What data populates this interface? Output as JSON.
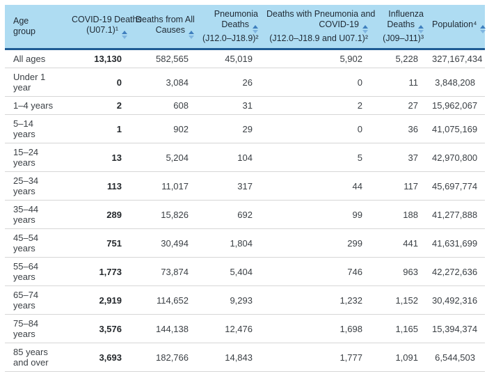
{
  "colors": {
    "header_bg": "#aedcf2",
    "header_border": "#1e5b94",
    "row_border": "#d6d6d6",
    "sort_icon_up": "#3f7fbe",
    "sort_icon_down": "#7fb5e0"
  },
  "table": {
    "columns": [
      {
        "id": "age_group",
        "align": "left",
        "sortable": false,
        "bold_values": false,
        "lines": [
          {
            "text": "Age"
          },
          {
            "text": "group"
          }
        ]
      },
      {
        "id": "covid19_deaths",
        "align": "right",
        "sortable": true,
        "bold_values": true,
        "lines": [
          {
            "text": "COVID-19 Deaths"
          },
          {
            "text": "(U07.1)¹",
            "sort": true
          }
        ]
      },
      {
        "id": "all_causes_deaths",
        "align": "right",
        "sortable": true,
        "bold_values": false,
        "lines": [
          {
            "text": "Deaths from All"
          },
          {
            "text": "Causes",
            "sort": true
          }
        ]
      },
      {
        "id": "pneumonia_deaths",
        "align": "right",
        "sortable": true,
        "bold_values": false,
        "lines": [
          {
            "text": "Pneumonia"
          },
          {
            "text": "Deaths",
            "sort": true
          },
          {
            "text": "(J12.0–J18.9)²"
          }
        ]
      },
      {
        "id": "pneumonia_covid_deaths",
        "align": "right",
        "sortable": true,
        "bold_values": false,
        "lines": [
          {
            "text": "Deaths with Pneumonia and"
          },
          {
            "text": "COVID-19",
            "sort": true
          },
          {
            "text": "(J12.0–J18.9 and U07.1)²"
          }
        ]
      },
      {
        "id": "influenza_deaths",
        "align": "right",
        "sortable": true,
        "bold_values": false,
        "lines": [
          {
            "text": "Influenza"
          },
          {
            "text": "Deaths",
            "sort": true
          },
          {
            "text": "(J09–J11)³"
          }
        ]
      },
      {
        "id": "population",
        "align": "right",
        "sortable": true,
        "bold_values": false,
        "lines": [
          {
            "text": "Population⁴",
            "sort": true
          }
        ]
      }
    ],
    "rows": [
      {
        "age_group": "All ages",
        "covid19_deaths": "13,130",
        "all_causes_deaths": "582,565",
        "pneumonia_deaths": "45,019",
        "pneumonia_covid_deaths": "5,902",
        "influenza_deaths": "5,228",
        "population": "327,167,434"
      },
      {
        "age_group": "Under 1 year",
        "covid19_deaths": "0",
        "all_causes_deaths": "3,084",
        "pneumonia_deaths": "26",
        "pneumonia_covid_deaths": "0",
        "influenza_deaths": "11",
        "population": "3,848,208"
      },
      {
        "age_group": "1–4 years",
        "covid19_deaths": "2",
        "all_causes_deaths": "608",
        "pneumonia_deaths": "31",
        "pneumonia_covid_deaths": "2",
        "influenza_deaths": "27",
        "population": "15,962,067"
      },
      {
        "age_group": "5–14 years",
        "covid19_deaths": "1",
        "all_causes_deaths": "902",
        "pneumonia_deaths": "29",
        "pneumonia_covid_deaths": "0",
        "influenza_deaths": "36",
        "population": "41,075,169"
      },
      {
        "age_group": "15–24 years",
        "covid19_deaths": "13",
        "all_causes_deaths": "5,204",
        "pneumonia_deaths": "104",
        "pneumonia_covid_deaths": "5",
        "influenza_deaths": "37",
        "population": "42,970,800"
      },
      {
        "age_group": "25–34 years",
        "covid19_deaths": "113",
        "all_causes_deaths": "11,017",
        "pneumonia_deaths": "317",
        "pneumonia_covid_deaths": "44",
        "influenza_deaths": "117",
        "population": "45,697,774"
      },
      {
        "age_group": "35–44 years",
        "covid19_deaths": "289",
        "all_causes_deaths": "15,826",
        "pneumonia_deaths": "692",
        "pneumonia_covid_deaths": "99",
        "influenza_deaths": "188",
        "population": "41,277,888"
      },
      {
        "age_group": "45–54 years",
        "covid19_deaths": "751",
        "all_causes_deaths": "30,494",
        "pneumonia_deaths": "1,804",
        "pneumonia_covid_deaths": "299",
        "influenza_deaths": "441",
        "population": "41,631,699"
      },
      {
        "age_group": "55–64 years",
        "covid19_deaths": "1,773",
        "all_causes_deaths": "73,874",
        "pneumonia_deaths": "5,404",
        "pneumonia_covid_deaths": "746",
        "influenza_deaths": "963",
        "population": "42,272,636"
      },
      {
        "age_group": "65–74 years",
        "covid19_deaths": "2,919",
        "all_causes_deaths": "114,652",
        "pneumonia_deaths": "9,293",
        "pneumonia_covid_deaths": "1,232",
        "influenza_deaths": "1,152",
        "population": "30,492,316"
      },
      {
        "age_group": "75–84 years",
        "covid19_deaths": "3,576",
        "all_causes_deaths": "144,138",
        "pneumonia_deaths": "12,476",
        "pneumonia_covid_deaths": "1,698",
        "influenza_deaths": "1,165",
        "population": "15,394,374"
      },
      {
        "age_group": "85 years and over",
        "covid19_deaths": "3,693",
        "all_causes_deaths": "182,766",
        "pneumonia_deaths": "14,843",
        "pneumonia_covid_deaths": "1,777",
        "influenza_deaths": "1,091",
        "population": "6,544,503"
      }
    ]
  }
}
